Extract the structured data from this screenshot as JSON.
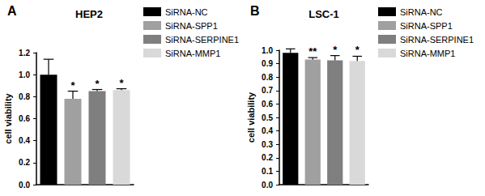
{
  "chart_data": [
    {
      "type": "bar",
      "panel": "A",
      "title": "HEP2",
      "y_label": "cell viability",
      "categories": [
        "SiRNA-NC",
        "SiRNA-SPP1",
        "SiRNA-SERPINE1",
        "SiRNA-MMP1"
      ],
      "values": [
        1.0,
        0.78,
        0.85,
        0.86
      ],
      "errors": [
        0.14,
        0.07,
        0.015,
        0.012
      ],
      "significance": [
        null,
        "*",
        "*",
        "*"
      ],
      "colors": [
        "#000000",
        "#a0a0a0",
        "#7f7f7f",
        "#d9d9d9"
      ],
      "ylim": [
        0,
        1.2
      ],
      "yticks": [
        {
          "value": 0,
          "label": "0.0"
        },
        0.2,
        0.4,
        0.6,
        0.8,
        {
          "value": 1.0,
          "label": "1.0"
        },
        1.2
      ],
      "legend": "right",
      "tick_labels": "y",
      "grid": false
    },
    {
      "type": "bar",
      "panel": "B",
      "title": "LSC-1",
      "y_label": "cell viability",
      "categories": [
        "SiRNA-NC",
        "SiRNA-SPP1",
        "SiRNA-SERPINE1",
        "SiRNA-MMP1"
      ],
      "values": [
        0.98,
        0.93,
        0.925,
        0.92
      ],
      "errors": [
        0.03,
        0.015,
        0.035,
        0.035
      ],
      "significance": [
        null,
        "**",
        "*",
        "*"
      ],
      "colors": [
        "#000000",
        "#a0a0a0",
        "#7f7f7f",
        "#d9d9d9"
      ],
      "ylim": [
        0,
        1.0
      ],
      "yticks": [
        {
          "value": 0,
          "label": "0.0"
        },
        0.1,
        0.2,
        0.3,
        0.4,
        0.5,
        0.6,
        0.7,
        0.8,
        0.9,
        {
          "value": 1.0,
          "label": "1.0"
        }
      ],
      "legend": "right",
      "tick_labels": "y",
      "grid": false
    }
  ]
}
